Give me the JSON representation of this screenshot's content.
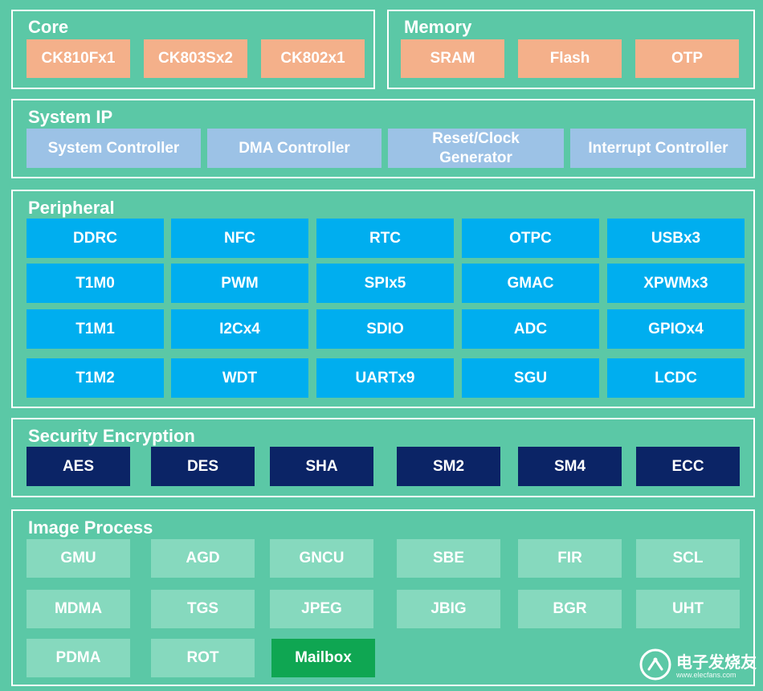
{
  "sections": {
    "core": {
      "title": "Core",
      "blocks": [
        "CK810Fx1",
        "CK803Sx2",
        "CK802x1"
      ]
    },
    "memory": {
      "title": "Memory",
      "blocks": [
        "SRAM",
        "Flash",
        "OTP"
      ]
    },
    "system_ip": {
      "title": "System IP",
      "blocks": [
        "System Controller",
        "DMA Controller",
        "Reset/Clock Generator",
        "Interrupt Controller"
      ]
    },
    "peripheral": {
      "title": "Peripheral",
      "blocks": [
        "DDRC",
        "NFC",
        "RTC",
        "OTPC",
        "USBx3",
        "T1M0",
        "PWM",
        "SPIx5",
        "GMAC",
        "XPWMx3",
        "T1M1",
        "I2Cx4",
        "SDIO",
        "ADC",
        "GPIOx4",
        "T1M2",
        "WDT",
        "UARTx9",
        "SGU",
        "LCDC"
      ]
    },
    "security": {
      "title": "Security Encryption",
      "blocks": [
        "AES",
        "DES",
        "SHA",
        "SM2",
        "SM4",
        "ECC"
      ]
    },
    "image": {
      "title": "Image Process",
      "blocks": [
        "GMU",
        "AGD",
        "GNCU",
        "SBE",
        "FIR",
        "SCL",
        "MDMA",
        "TGS",
        "JPEG",
        "JBIG",
        "BGR",
        "UHT",
        "PDMA",
        "ROT",
        "Mailbox"
      ]
    }
  },
  "watermark": {
    "text": "电子发烧友",
    "subtext": "www.elecfans.com"
  },
  "colors": {
    "background": "#5bc8a6",
    "core_block": "#f4b08a",
    "system_block": "#9cc2e6",
    "peripheral_block": "#00aeef",
    "security_block": "#0b2466",
    "image_block": "#86d9be",
    "mailbox_block": "#0fa652"
  }
}
